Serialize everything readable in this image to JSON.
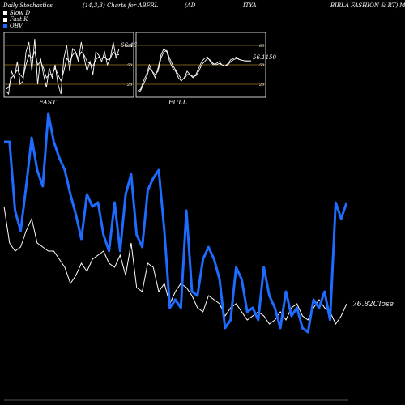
{
  "header": {
    "left": "Daily Stochastics",
    "params": "(14,3,3) Charts for ABFRL",
    "ad": "(AD",
    "itya": "ITYA",
    "company": "BIRLA FASHION & RT) Munafa"
  },
  "legend": [
    {
      "label": "Slow D",
      "color": "#ffffff"
    },
    {
      "label": "Fast K",
      "color": "#ffffff"
    },
    {
      "label": "OBV",
      "color": "#1e6bff"
    }
  ],
  "colors": {
    "background": "#000000",
    "obv": "#1e6bff",
    "price": "#ffffff",
    "band": "#a07820"
  },
  "panels": {
    "fast": {
      "label": "FAST",
      "levels": [
        "80",
        "50",
        "20"
      ],
      "last_value": "66.46",
      "fast_k": [
        10,
        5,
        40,
        30,
        55,
        20,
        25,
        70,
        85,
        40,
        90,
        20,
        60,
        35,
        15,
        45,
        30,
        50,
        20,
        5,
        60,
        80,
        40,
        75,
        70,
        55,
        85,
        60,
        40,
        55,
        35,
        70,
        65,
        55,
        70,
        50,
        60,
        85,
        60,
        75
      ],
      "slow_d": [
        12,
        15,
        30,
        35,
        42,
        35,
        30,
        50,
        65,
        60,
        70,
        50,
        55,
        45,
        30,
        35,
        35,
        45,
        35,
        25,
        40,
        60,
        55,
        65,
        70,
        60,
        70,
        65,
        55,
        52,
        48,
        58,
        62,
        60,
        62,
        58,
        60,
        70,
        65,
        66
      ]
    },
    "full": {
      "label": "FULL",
      "levels": [
        "80",
        "50",
        "20"
      ],
      "last_value": "56.11",
      "last_value_suffix": "50",
      "fast_k": [
        10,
        12,
        25,
        35,
        50,
        40,
        30,
        45,
        65,
        75,
        70,
        55,
        45,
        40,
        30,
        25,
        30,
        40,
        35,
        30,
        35,
        45,
        55,
        60,
        62,
        55,
        50,
        52,
        55,
        50,
        48,
        52,
        58,
        60,
        62,
        58,
        57,
        56,
        56,
        56
      ],
      "slow_d": [
        8,
        10,
        20,
        30,
        45,
        40,
        35,
        40,
        60,
        70,
        72,
        60,
        50,
        42,
        35,
        28,
        28,
        35,
        35,
        32,
        33,
        40,
        50,
        55,
        60,
        57,
        52,
        50,
        52,
        50,
        48,
        50,
        55,
        58,
        60,
        58,
        57,
        56,
        56,
        56
      ]
    }
  },
  "chart_data": {
    "type": "line",
    "series": [
      {
        "name": "OBV",
        "values": [
          175,
          175,
          260,
          285,
          230,
          170,
          210,
          230,
          140,
          175,
          195,
          210,
          240,
          265,
          295,
          240,
          255,
          250,
          290,
          310,
          250,
          310,
          240,
          215,
          290,
          305,
          235,
          220,
          210,
          285,
          380,
          370,
          380,
          260,
          360,
          365,
          320,
          305,
          320,
          345,
          405,
          395,
          330,
          345,
          385,
          380,
          395,
          330,
          365,
          380,
          405,
          360,
          390,
          380,
          405,
          410,
          370,
          380,
          360,
          395,
          250,
          270,
          250
        ]
      },
      {
        "name": "Price",
        "values": [
          255,
          300,
          310,
          305,
          285,
          270,
          300,
          305,
          310,
          310,
          320,
          330,
          350,
          340,
          325,
          335,
          320,
          315,
          310,
          325,
          330,
          315,
          340,
          300,
          355,
          360,
          325,
          330,
          360,
          350,
          375,
          360,
          350,
          355,
          365,
          380,
          385,
          365,
          370,
          375,
          390,
          380,
          375,
          385,
          395,
          390,
          385,
          390,
          400,
          395,
          385,
          395,
          380,
          375,
          390,
          395,
          380,
          370,
          380,
          385,
          400,
          390,
          375
        ]
      }
    ],
    "price_label": "76.82",
    "price_label_suffix": "Close"
  }
}
